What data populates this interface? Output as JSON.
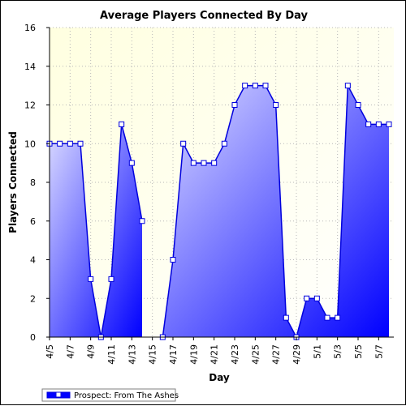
{
  "chart_data": {
    "type": "area",
    "title": "Average Players Connected By Day",
    "xlabel": "Day",
    "ylabel": "Players Connected",
    "ylim": [
      0,
      16
    ],
    "yticks": [
      0,
      2,
      4,
      6,
      8,
      10,
      12,
      14,
      16
    ],
    "grid": true,
    "legend_position": "bottom-left",
    "colors": {
      "line": "#0000dd",
      "area_top": "#dcdcff",
      "area_bottom": "#0000ff",
      "plot_bg_top": "#ffffe0",
      "plot_bg_bottom": "#ffffff"
    },
    "x": [
      "4/5",
      "4/6",
      "4/7",
      "4/8",
      "4/9",
      "4/10",
      "4/11",
      "4/12",
      "4/13",
      "4/14",
      "4/15",
      "4/16",
      "4/17",
      "4/18",
      "4/19",
      "4/20",
      "4/21",
      "4/22",
      "4/23",
      "4/24",
      "4/25",
      "4/26",
      "4/27",
      "4/28",
      "4/29",
      "4/30",
      "5/1",
      "5/2",
      "5/3",
      "5/4",
      "5/5",
      "5/6",
      "5/7",
      "5/8"
    ],
    "xtick_labels": [
      "4/5",
      "4/7",
      "4/9",
      "4/11",
      "4/13",
      "4/15",
      "4/17",
      "4/19",
      "4/21",
      "4/23",
      "4/25",
      "4/27",
      "4/29",
      "5/1",
      "5/3",
      "5/5",
      "5/7"
    ],
    "series": [
      {
        "name": "Prospect: From The Ashes",
        "values": [
          10,
          10,
          10,
          10,
          3,
          0,
          3,
          11,
          9,
          6,
          null,
          0,
          4,
          10,
          9,
          9,
          9,
          10,
          12,
          13,
          13,
          13,
          12,
          1,
          0,
          2,
          2,
          1,
          1,
          13,
          12,
          11,
          11,
          11
        ]
      }
    ]
  }
}
